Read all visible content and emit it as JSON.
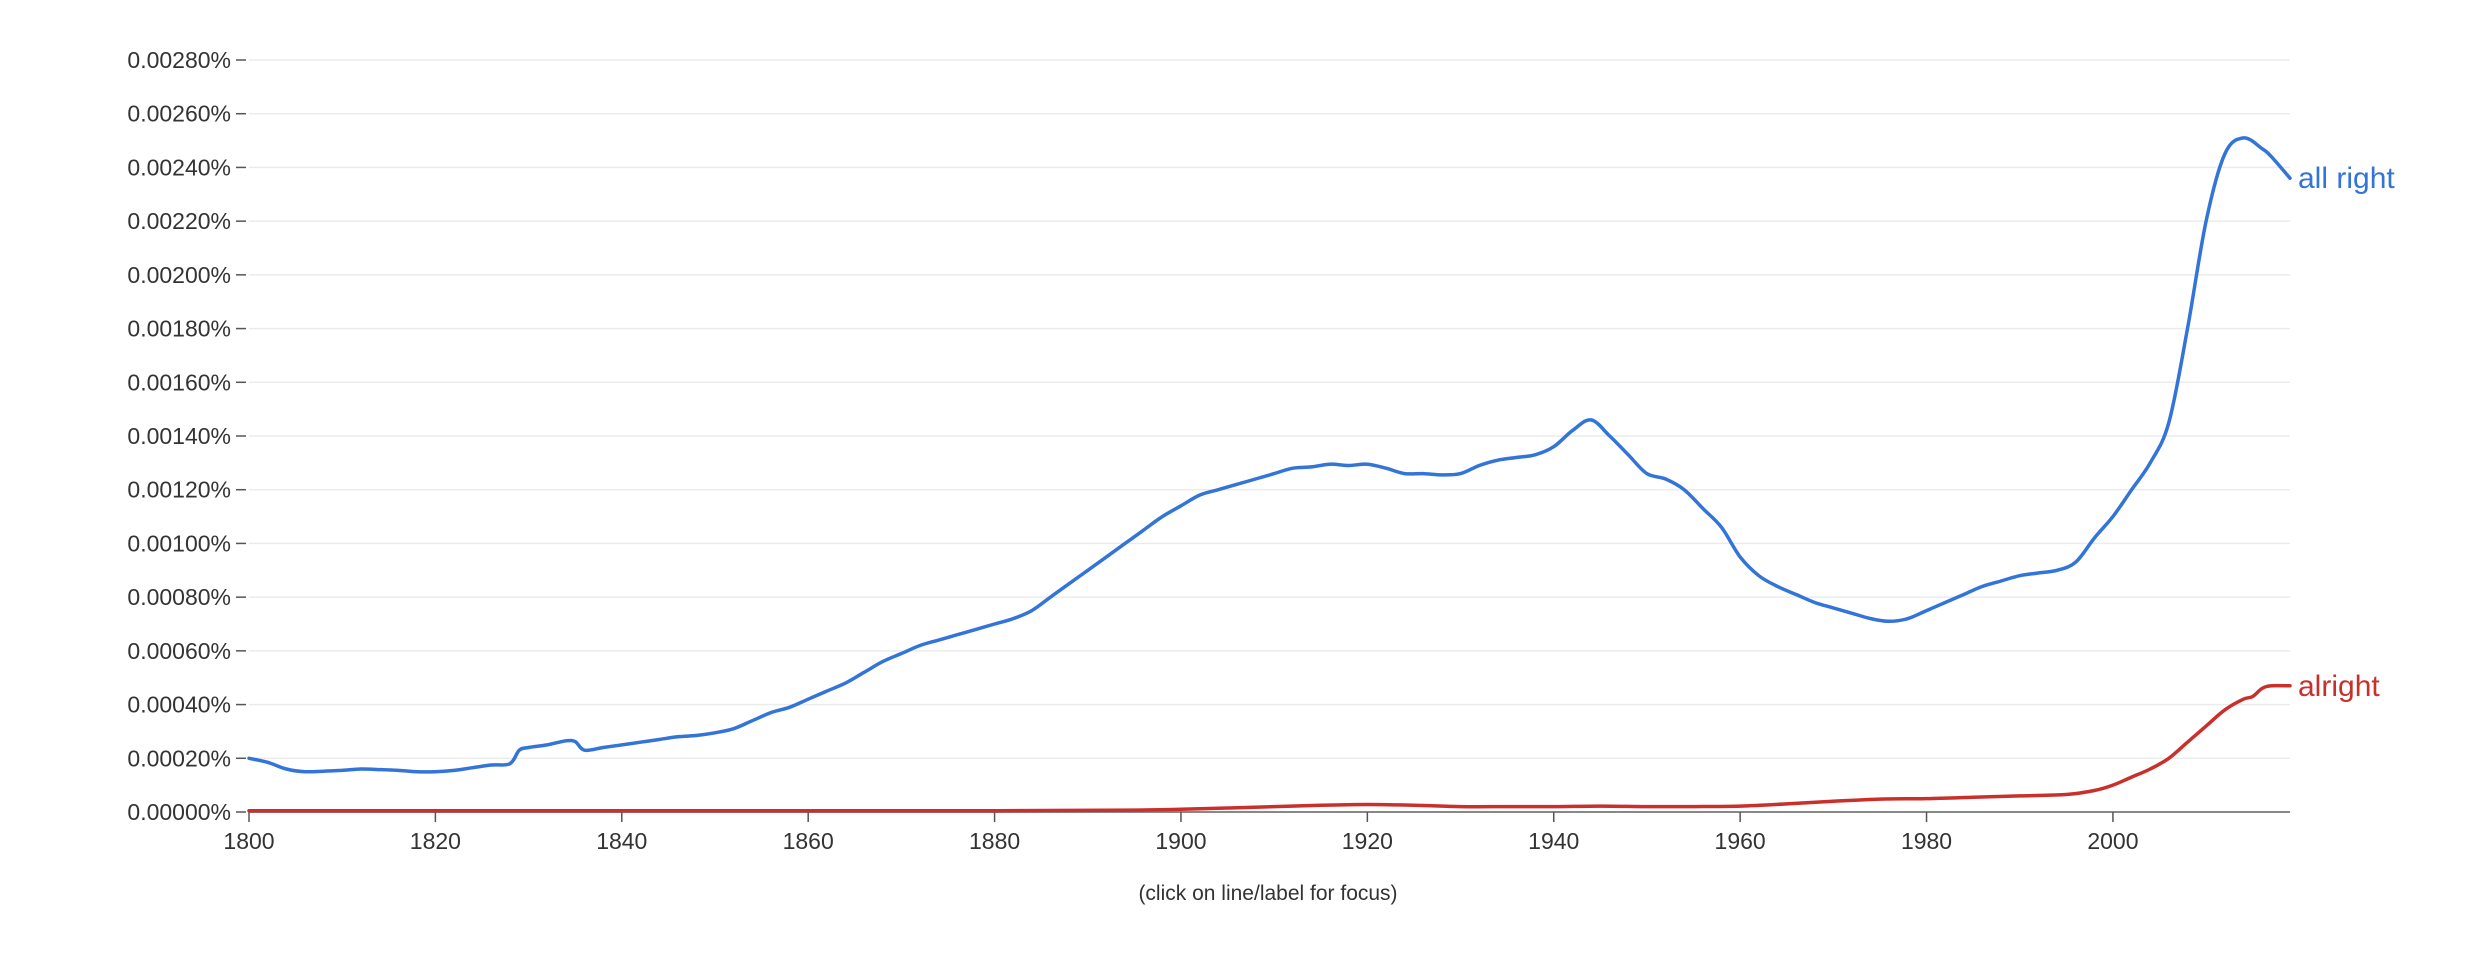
{
  "hint_text": "(click on line/label for focus)",
  "chart_data": {
    "type": "line",
    "xlim": [
      1800,
      2019
    ],
    "ylim": [
      0,
      0.0028
    ],
    "y_ticks": [
      0,
      0.0002,
      0.0004,
      0.0006,
      0.0008,
      0.001,
      0.0012,
      0.0014,
      0.0016,
      0.0018,
      0.002,
      0.0022,
      0.0024,
      0.0026,
      0.0028
    ],
    "y_tick_labels": [
      "0.00000%",
      "0.00020%",
      "0.00040%",
      "0.00060%",
      "0.00080%",
      "0.00100%",
      "0.00120%",
      "0.00140%",
      "0.00160%",
      "0.00180%",
      "0.00200%",
      "0.00220%",
      "0.00240%",
      "0.00260%",
      "0.00280%"
    ],
    "x_ticks": [
      1800,
      1820,
      1840,
      1860,
      1880,
      1900,
      1920,
      1940,
      1960,
      1980,
      2000
    ],
    "x_tick_labels": [
      "1800",
      "1820",
      "1840",
      "1860",
      "1880",
      "1900",
      "1920",
      "1940",
      "1960",
      "1980",
      "2000"
    ],
    "grid": true,
    "legend": "labels at line ends",
    "series": [
      {
        "name": "all right",
        "color": "#3274d8",
        "x": [
          1800,
          1802,
          1804,
          1806,
          1808,
          1810,
          1812,
          1814,
          1816,
          1818,
          1820,
          1822,
          1824,
          1826,
          1828,
          1829,
          1830,
          1832,
          1834,
          1835,
          1836,
          1838,
          1840,
          1842,
          1844,
          1846,
          1848,
          1850,
          1852,
          1854,
          1856,
          1858,
          1860,
          1862,
          1864,
          1866,
          1868,
          1870,
          1872,
          1874,
          1876,
          1878,
          1880,
          1882,
          1884,
          1886,
          1888,
          1890,
          1892,
          1894,
          1896,
          1898,
          1900,
          1902,
          1904,
          1906,
          1908,
          1910,
          1912,
          1914,
          1916,
          1918,
          1920,
          1922,
          1924,
          1926,
          1928,
          1930,
          1932,
          1934,
          1936,
          1938,
          1940,
          1942,
          1944,
          1946,
          1948,
          1950,
          1952,
          1954,
          1956,
          1958,
          1960,
          1962,
          1964,
          1966,
          1968,
          1970,
          1972,
          1974,
          1976,
          1978,
          1980,
          1982,
          1984,
          1986,
          1988,
          1990,
          1992,
          1994,
          1996,
          1998,
          2000,
          2002,
          2004,
          2006,
          2008,
          2010,
          2012,
          2014,
          2016,
          2017,
          2019
        ],
        "values": [
          0.0002,
          0.000185,
          0.00016,
          0.00015,
          0.000152,
          0.000155,
          0.00016,
          0.000158,
          0.000155,
          0.00015,
          0.00015,
          0.000155,
          0.000165,
          0.000175,
          0.00018,
          0.00023,
          0.00024,
          0.00025,
          0.000265,
          0.000262,
          0.00023,
          0.00024,
          0.00025,
          0.00026,
          0.00027,
          0.00028,
          0.000285,
          0.000295,
          0.00031,
          0.00034,
          0.00037,
          0.00039,
          0.00042,
          0.00045,
          0.00048,
          0.00052,
          0.00056,
          0.00059,
          0.00062,
          0.00064,
          0.00066,
          0.00068,
          0.0007,
          0.00072,
          0.00075,
          0.0008,
          0.00085,
          0.0009,
          0.00095,
          0.001,
          0.00105,
          0.0011,
          0.00114,
          0.00118,
          0.0012,
          0.00122,
          0.00124,
          0.00126,
          0.00128,
          0.001285,
          0.001295,
          0.00129,
          0.001295,
          0.00128,
          0.00126,
          0.00126,
          0.001255,
          0.00126,
          0.00129,
          0.00131,
          0.00132,
          0.00133,
          0.00136,
          0.00142,
          0.00146,
          0.0014,
          0.00133,
          0.00126,
          0.00124,
          0.0012,
          0.00113,
          0.00106,
          0.00095,
          0.00088,
          0.00084,
          0.00081,
          0.00078,
          0.00076,
          0.00074,
          0.00072,
          0.00071,
          0.00072,
          0.00075,
          0.00078,
          0.00081,
          0.00084,
          0.00086,
          0.00088,
          0.00089,
          0.0009,
          0.00093,
          0.00102,
          0.0011,
          0.0012,
          0.0013,
          0.00145,
          0.0018,
          0.0022,
          0.00245,
          0.00251,
          0.00247,
          0.00244,
          0.00236
        ]
      },
      {
        "name": "alright",
        "color": "#c9302c",
        "x": [
          1800,
          1820,
          1840,
          1860,
          1880,
          1895,
          1900,
          1905,
          1910,
          1915,
          1920,
          1925,
          1930,
          1935,
          1940,
          1945,
          1950,
          1955,
          1960,
          1965,
          1970,
          1975,
          1980,
          1985,
          1990,
          1995,
          1998,
          2000,
          2002,
          2004,
          2006,
          2008,
          2010,
          2012,
          2014,
          2015,
          2016,
          2017,
          2019
        ],
        "values": [
          5e-06,
          5e-06,
          5e-06,
          5e-06,
          5e-06,
          7e-06,
          1e-05,
          1.5e-05,
          2e-05,
          2.5e-05,
          2.8e-05,
          2.5e-05,
          2e-05,
          2e-05,
          2e-05,
          2.2e-05,
          2e-05,
          2e-05,
          2.2e-05,
          3e-05,
          4e-05,
          4.8e-05,
          5e-05,
          5.5e-05,
          6e-05,
          6.5e-05,
          8e-05,
          0.0001,
          0.00013,
          0.00016,
          0.0002,
          0.00026,
          0.00032,
          0.00038,
          0.00042,
          0.00043,
          0.00046,
          0.00047,
          0.00047
        ]
      }
    ]
  }
}
